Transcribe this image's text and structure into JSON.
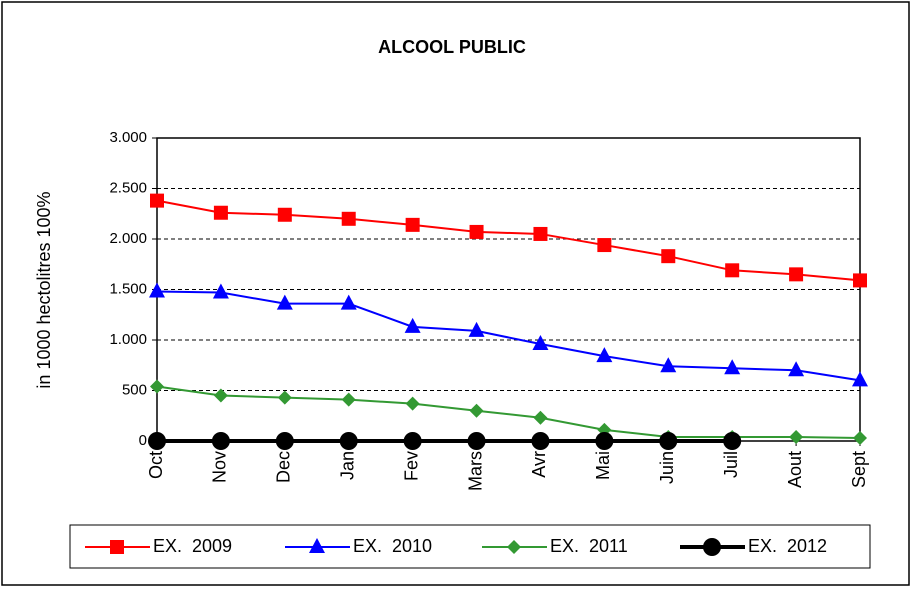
{
  "chart_data": {
    "type": "line",
    "title": "ALCOOL PUBLIC",
    "y_label": "in 1000 hectolitres 100%",
    "categories": [
      "Oct",
      "Nov",
      "Dec",
      "Jan",
      "Fev",
      "Mars",
      "Avr",
      "Mai",
      "Juin",
      "Juil",
      "Aout",
      "Sept"
    ],
    "series": [
      {
        "name": "EX.  2009",
        "color": "#ff0000",
        "marker": "square",
        "line_width": 2,
        "values": [
          2380,
          2260,
          2240,
          2200,
          2140,
          2070,
          2050,
          1940,
          1830,
          1690,
          1650,
          1590
        ]
      },
      {
        "name": "EX.  2010",
        "color": "#0000ff",
        "marker": "triangle",
        "line_width": 2,
        "values": [
          1480,
          1470,
          1360,
          1360,
          1130,
          1090,
          960,
          840,
          740,
          720,
          700,
          600
        ]
      },
      {
        "name": "EX.  2011",
        "color": "#339933",
        "marker": "diamond",
        "line_width": 2,
        "values": [
          540,
          450,
          430,
          410,
          370,
          300,
          230,
          110,
          40,
          40,
          40,
          30
        ]
      },
      {
        "name": "EX.  2012",
        "color": "#000000",
        "marker": "circle",
        "line_width": 4,
        "values": [
          0,
          0,
          0,
          0,
          0,
          0,
          0,
          0,
          0,
          0,
          null,
          null
        ]
      }
    ],
    "ylim": [
      0,
      3000
    ],
    "yticks": [
      0,
      500,
      {
        "value": 1000,
        "label": "1.000"
      },
      {
        "value": 1500,
        "label": "1.500"
      },
      {
        "value": 2000,
        "label": "2.000"
      },
      {
        "value": 2500,
        "label": "2.500"
      },
      {
        "value": 3000,
        "label": "3.000"
      }
    ],
    "grid": true,
    "legend": "bottom"
  }
}
